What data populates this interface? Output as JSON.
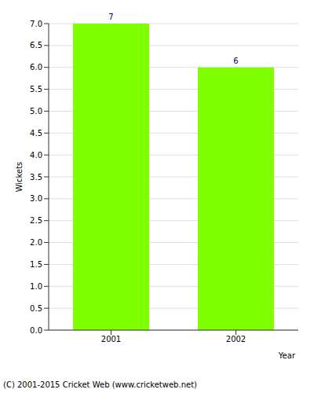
{
  "chart_data": {
    "type": "bar",
    "categories": [
      "2001",
      "2002"
    ],
    "values": [
      7,
      6
    ],
    "color": "#80ff00",
    "x_label": "Year",
    "y_label": "Wickets",
    "ylim": [
      0,
      7
    ],
    "yticks": [
      {
        "value": 0,
        "label": "0.0"
      },
      {
        "value": 0.5,
        "label": "0.5"
      },
      {
        "value": 1,
        "label": "1.0"
      },
      {
        "value": 1.5,
        "label": "1.5"
      },
      {
        "value": 2,
        "label": "2.0"
      },
      {
        "value": 2.5,
        "label": "2.5"
      },
      {
        "value": 3,
        "label": "3.0"
      },
      {
        "value": 3.5,
        "label": "3.5"
      },
      {
        "value": 4,
        "label": "4.0"
      },
      {
        "value": 4.5,
        "label": "4.5"
      },
      {
        "value": 5,
        "label": "5.0"
      },
      {
        "value": 5.5,
        "label": "5.5"
      },
      {
        "value": 6,
        "label": "6.0"
      },
      {
        "value": 6.5,
        "label": "6.5"
      },
      {
        "value": 7,
        "label": "7.0"
      }
    ],
    "grid": true,
    "data_labels": true,
    "annotations": [
      "(C) 2001-2015 Cricket Web (www.cricketweb.net)"
    ]
  }
}
